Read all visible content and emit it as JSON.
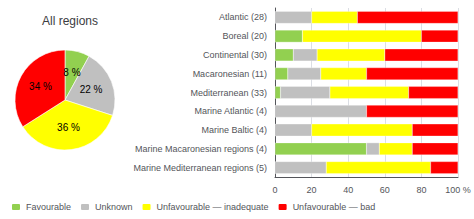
{
  "chart_data": [
    {
      "type": "pie",
      "title": "All regions",
      "values": [
        8,
        22,
        36,
        34
      ],
      "value_labels": [
        "8 %",
        "22 %",
        "36 %",
        "34 %"
      ],
      "colors": [
        "#92d050",
        "#c0c0c0",
        "#ffff00",
        "#ff0000"
      ],
      "data_labels": true
    },
    {
      "type": "bar",
      "orientation": "horizontal",
      "stacked": true,
      "categories": [
        "Atlantic (28)",
        "Boreal (20)",
        "Continental (30)",
        "Macaronesian (11)",
        "Mediterranean (33)",
        "Marine Atlantic (4)",
        "Marine Baltic (4)",
        "Marine Macaronesian regions (4)",
        "Marine Mediterranean regions (5)"
      ],
      "series": [
        {
          "name": "Favourable",
          "color": "#92d050",
          "values": [
            0,
            15,
            10,
            7,
            3,
            0,
            0,
            50,
            0
          ]
        },
        {
          "name": "Unknown",
          "color": "#c0c0c0",
          "values": [
            20,
            0,
            13,
            18,
            27,
            50,
            20,
            7,
            28
          ]
        },
        {
          "name": "Unfavourable — inadequate",
          "color": "#ffff00",
          "values": [
            25,
            65,
            37,
            25,
            43,
            0,
            55,
            18,
            57
          ]
        },
        {
          "name": "Unfavourable — bad",
          "color": "#ff0000",
          "values": [
            55,
            20,
            40,
            50,
            27,
            50,
            25,
            25,
            15
          ]
        }
      ],
      "xlim": [
        0,
        100
      ],
      "xticks": [
        0,
        20,
        40,
        60,
        80,
        {
          "value": 100,
          "label": "100 %"
        }
      ],
      "grid": true,
      "legend": "lower left"
    }
  ]
}
